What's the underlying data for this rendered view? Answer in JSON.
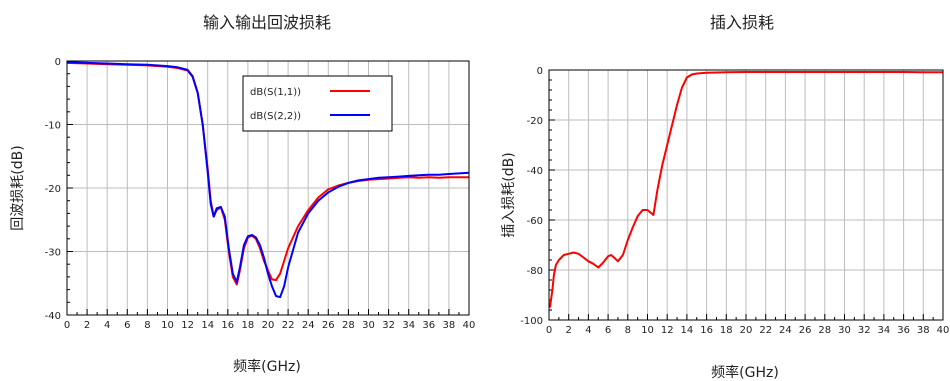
{
  "colors": {
    "s11": "#ff0000",
    "s22": "#0000ff",
    "grid": "#bdbdbd",
    "axis": "#000000",
    "text": "#222222"
  },
  "chart_data": [
    {
      "type": "line",
      "title": "输入输出回波损耗",
      "xlabel": "频率(GHz)",
      "ylabel": "回波损耗(dB)",
      "xlim": [
        0,
        40
      ],
      "ylim": [
        -40,
        0
      ],
      "xticks": [
        0,
        2,
        4,
        6,
        8,
        10,
        12,
        14,
        16,
        18,
        20,
        22,
        24,
        26,
        28,
        30,
        32,
        34,
        36,
        38,
        40
      ],
      "yticks": [
        0,
        -10,
        -20,
        -30,
        -40
      ],
      "grid": true,
      "legend_position": "top-center",
      "series": [
        {
          "name": "dB(S(1,1))",
          "color": "#ff0000",
          "x": [
            0,
            2,
            4,
            6,
            8,
            10,
            11,
            12,
            12.5,
            13,
            13.5,
            14,
            14.3,
            14.6,
            14.9,
            15.3,
            15.7,
            16.1,
            16.5,
            16.9,
            17.2,
            17.6,
            18,
            18.4,
            18.8,
            19.2,
            19.6,
            20,
            20.4,
            20.8,
            21.2,
            21.6,
            22,
            23,
            24,
            25,
            26,
            27,
            28,
            29,
            30,
            31,
            32,
            33,
            34,
            35,
            36,
            37,
            38,
            39,
            40
          ],
          "y": [
            -0.3,
            -0.4,
            -0.5,
            -0.6,
            -0.7,
            -0.9,
            -1.1,
            -1.5,
            -2.5,
            -5,
            -10,
            -17,
            -22,
            -24.5,
            -23.5,
            -23,
            -25,
            -30,
            -34,
            -35.2,
            -33,
            -29.5,
            -27.8,
            -27.5,
            -28,
            -29.5,
            -31.5,
            -33,
            -34.4,
            -34.5,
            -33.5,
            -31.5,
            -29.5,
            -26,
            -23.5,
            -21.5,
            -20.2,
            -19.6,
            -19.2,
            -18.9,
            -18.7,
            -18.6,
            -18.5,
            -18.4,
            -18.3,
            -18.4,
            -18.3,
            -18.4,
            -18.3,
            -18.3,
            -18.3
          ]
        },
        {
          "name": "dB(S(2,2))",
          "color": "#0000ff",
          "x": [
            0,
            2,
            4,
            6,
            8,
            10,
            11,
            12,
            12.5,
            13,
            13.5,
            14,
            14.3,
            14.6,
            14.9,
            15.3,
            15.7,
            16.1,
            16.5,
            16.9,
            17.2,
            17.6,
            18,
            18.4,
            18.8,
            19.2,
            19.6,
            20,
            20.4,
            20.8,
            21.2,
            21.6,
            22,
            23,
            24,
            25,
            26,
            27,
            28,
            29,
            30,
            31,
            32,
            33,
            34,
            35,
            36,
            37,
            38,
            39,
            40
          ],
          "y": [
            -0.2,
            -0.3,
            -0.4,
            -0.5,
            -0.6,
            -0.8,
            -1,
            -1.4,
            -2.4,
            -5,
            -10,
            -17.5,
            -22.5,
            -24.5,
            -23.2,
            -23,
            -24.5,
            -29.5,
            -33.5,
            -34.8,
            -32.5,
            -29,
            -27.6,
            -27.4,
            -27.8,
            -29,
            -31,
            -33.5,
            -35.5,
            -37,
            -37.2,
            -35.5,
            -32.5,
            -27,
            -24,
            -22,
            -20.7,
            -19.8,
            -19.2,
            -18.8,
            -18.6,
            -18.4,
            -18.3,
            -18.2,
            -18.1,
            -18,
            -17.9,
            -17.9,
            -17.8,
            -17.7,
            -17.6
          ]
        }
      ]
    },
    {
      "type": "line",
      "title": "插入损耗",
      "xlabel": "频率(GHz)",
      "ylabel": "插入损耗(dB)",
      "xlim": [
        0,
        40
      ],
      "ylim": [
        -100,
        0
      ],
      "xticks": [
        0,
        2,
        4,
        6,
        8,
        10,
        12,
        14,
        16,
        18,
        20,
        22,
        24,
        26,
        28,
        30,
        32,
        34,
        36,
        38,
        40
      ],
      "yticks": [
        0,
        -20,
        -40,
        -60,
        -80,
        -100
      ],
      "grid": true,
      "series": [
        {
          "color": "#ff0000",
          "x": [
            0.1,
            0.2,
            0.35,
            0.5,
            0.7,
            1,
            1.5,
            2,
            2.5,
            3,
            3.5,
            4,
            4.5,
            5,
            5.5,
            6,
            6.3,
            6.6,
            7,
            7.5,
            8,
            8.5,
            9,
            9.5,
            10,
            10.3,
            10.6,
            11,
            11.5,
            12,
            12.5,
            13,
            13.5,
            14,
            14.5,
            15,
            16,
            18,
            20,
            22,
            24,
            26,
            28,
            30,
            32,
            34,
            36,
            38,
            40
          ],
          "y": [
            -95,
            -92,
            -88,
            -82,
            -78,
            -76,
            -74,
            -73.5,
            -73,
            -73.5,
            -75,
            -76.5,
            -77.5,
            -79,
            -77,
            -74.5,
            -74,
            -75,
            -76.5,
            -74,
            -68,
            -63,
            -58.5,
            -56,
            -56,
            -57,
            -58,
            -48,
            -38,
            -30,
            -22,
            -14,
            -7,
            -3,
            -1.8,
            -1.4,
            -1.1,
            -0.9,
            -0.8,
            -0.8,
            -0.8,
            -0.8,
            -0.8,
            -0.8,
            -0.8,
            -0.8,
            -0.8,
            -0.9,
            -0.9
          ]
        }
      ]
    }
  ]
}
